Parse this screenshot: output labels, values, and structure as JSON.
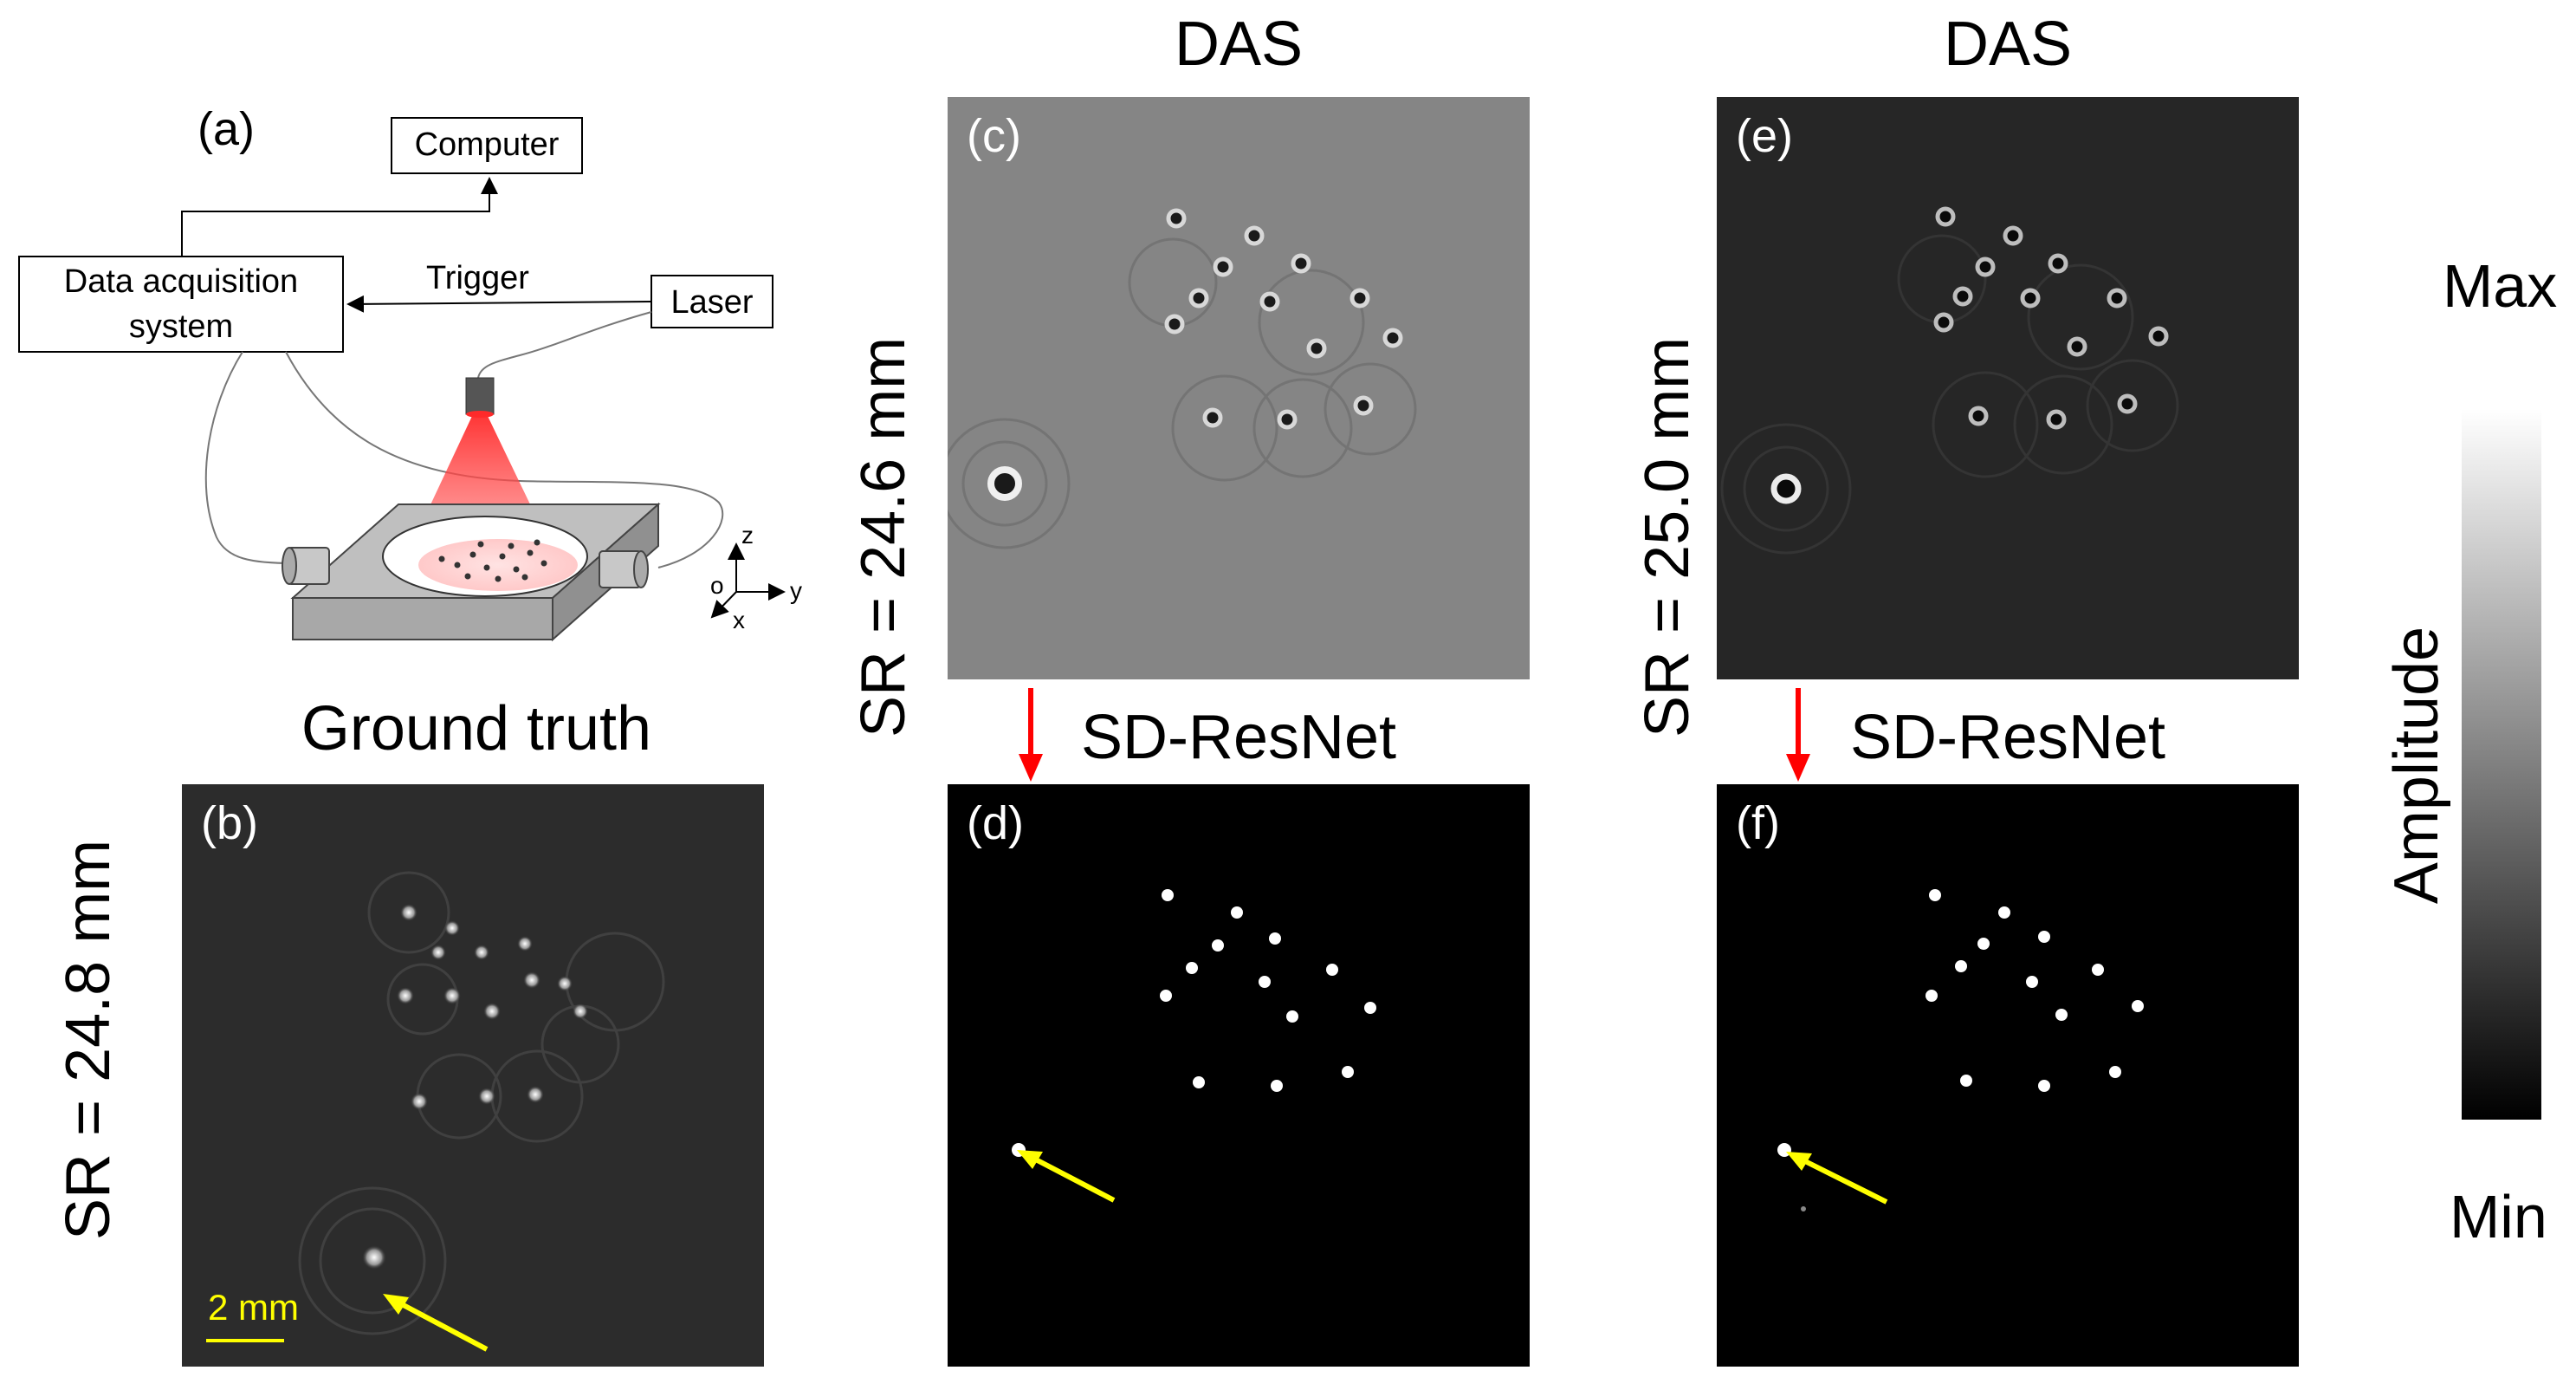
{
  "setup": {
    "panel_label": "(a)",
    "computer": "Computer",
    "daq_line1": "Data acquisition",
    "daq_line2": "system",
    "trigger": "Trigger",
    "laser": "Laser",
    "axis_z": "z",
    "axis_y": "y",
    "axis_x": "x",
    "axis_o": "o"
  },
  "panels": {
    "b": {
      "label": "(b)",
      "title": "Ground truth",
      "side": "SR = 24.8 mm",
      "scale": "2 mm"
    },
    "c": {
      "label": "(c)",
      "title": "DAS",
      "side": "SR = 24.6 mm"
    },
    "d": {
      "label": "(d)",
      "title": "SD-ResNet"
    },
    "e": {
      "label": "(e)",
      "title": "DAS",
      "side": "SR = 25.0 mm"
    },
    "f": {
      "label": "(f)",
      "title": "SD-ResNet"
    }
  },
  "colorbar": {
    "max": "Max",
    "min": "Min",
    "label": "Amplitude"
  },
  "colors": {
    "arrow_yellow": "#ffff00",
    "arrow_red": "#ff0000",
    "laser_red": "#ff3b3b"
  }
}
